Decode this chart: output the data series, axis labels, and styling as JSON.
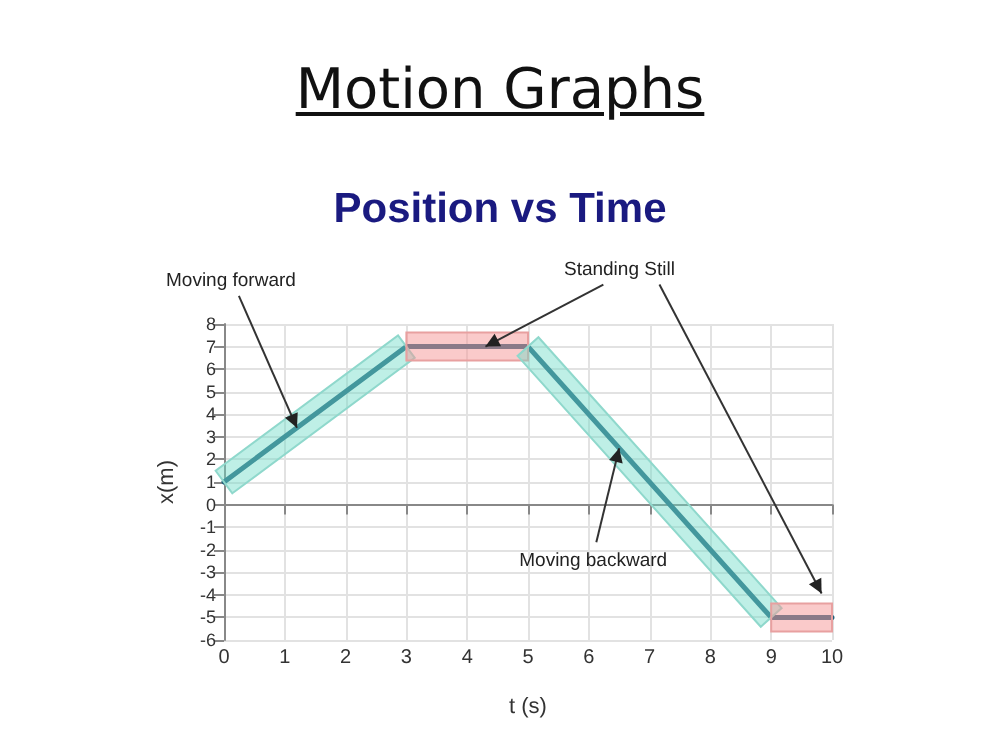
{
  "chart_data": {
    "type": "line",
    "title": "Motion Graphs",
    "subtitle": "Position vs Time",
    "xlabel": "t (s)",
    "ylabel": "x(m)",
    "x": [
      0,
      3,
      5,
      9,
      10
    ],
    "series": [
      {
        "color": "#1f5f7a",
        "values": [
          1,
          7,
          7,
          -5,
          -5
        ]
      }
    ],
    "xlim": [
      0,
      10
    ],
    "xticks": [
      0,
      1,
      2,
      3,
      4,
      5,
      6,
      7,
      8,
      9,
      10
    ],
    "ylim": [
      -6,
      8
    ],
    "yticks": [
      -6,
      -5,
      -4,
      -3,
      -2,
      -1,
      0,
      1,
      2,
      3,
      4,
      5,
      6,
      7,
      8
    ],
    "grid": true,
    "marker": "none",
    "line_style": "solid",
    "annotations": [
      {
        "text": "Moving forward",
        "x": 1.2,
        "y": 3.4
      },
      {
        "text": "Standing Still",
        "x": 4.3,
        "y": 7
      },
      {
        "text": "Moving backward",
        "x": 6.5,
        "y": 2.5
      }
    ]
  }
}
